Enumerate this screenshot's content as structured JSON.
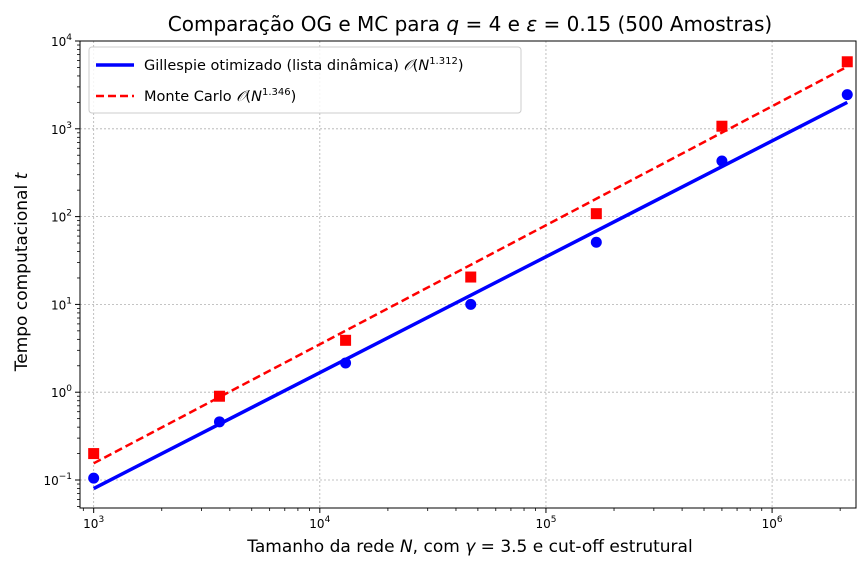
{
  "chart_data": {
    "type": "scatter",
    "title_parts": [
      "Comparação OG e MC para ",
      "q",
      " = 4 e ",
      "ε",
      " = 0.15 (500 Amostras)"
    ],
    "xlabel_parts": [
      "Tamanho da rede ",
      "N",
      ", com ",
      "γ",
      " = 3.5 e cut-off estrutural"
    ],
    "ylabel_parts": [
      "Tempo computacional ",
      "t"
    ],
    "xscale": "log",
    "yscale": "log",
    "xlim": [
      870,
      2350000
    ],
    "ylim": [
      0.048,
      10000
    ],
    "grid": true,
    "legend_position": "top-left",
    "x_tick_labels": [
      {
        "value": 1000,
        "base": "10",
        "exp": "3"
      },
      {
        "value": 10000,
        "base": "10",
        "exp": "4"
      },
      {
        "value": 100000,
        "base": "10",
        "exp": "5"
      },
      {
        "value": 1000000,
        "base": "10",
        "exp": "6"
      }
    ],
    "y_tick_labels": [
      {
        "value": 0.1,
        "base": "10",
        "exp": "−1"
      },
      {
        "value": 1,
        "base": "10",
        "exp": "0"
      },
      {
        "value": 10,
        "base": "10",
        "exp": "1"
      },
      {
        "value": 100,
        "base": "10",
        "exp": "2"
      },
      {
        "value": 1000,
        "base": "10",
        "exp": "3"
      },
      {
        "value": 10000,
        "base": "10",
        "exp": "4"
      }
    ],
    "series": [
      {
        "name_parts": [
          "Gillespie otimizado (lista dinâmica) ",
          "𝒪",
          "(",
          "N",
          "1.312",
          ")"
        ],
        "color": "#0000ff",
        "marker": "circle",
        "line_style": "solid",
        "x": [
          1000,
          3600,
          13000,
          46500,
          167000,
          600000,
          2150000
        ],
        "y": [
          0.105,
          0.46,
          2.15,
          10.0,
          51.0,
          430,
          2450
        ],
        "fit": {
          "exponent": 1.312,
          "x": [
            1000,
            2150000
          ],
          "y": [
            0.08,
            2000
          ]
        }
      },
      {
        "name_parts": [
          "Monte Carlo ",
          "𝒪",
          "(",
          "N",
          "1.346",
          ")"
        ],
        "color": "#ff0000",
        "marker": "square",
        "line_style": "dashed",
        "x": [
          1000,
          3600,
          13000,
          46500,
          167000,
          600000,
          2150000
        ],
        "y": [
          0.2,
          0.9,
          3.9,
          20.5,
          108,
          1070,
          5800
        ],
        "fit": {
          "exponent": 1.346,
          "x": [
            1000,
            2150000
          ],
          "y": [
            0.155,
            5100
          ]
        }
      }
    ]
  }
}
